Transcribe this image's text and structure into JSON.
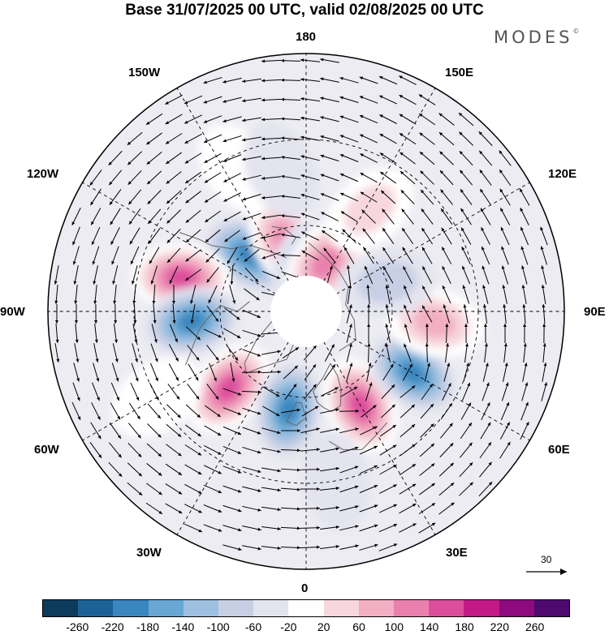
{
  "title": "Base 31/07/2025 00 UTC, valid 02/08/2025 00 UTC",
  "brand": "MODES",
  "brand_mark": "©",
  "map_labels": {
    "top": "180",
    "bottom": "0",
    "left": "90W",
    "right": "90E",
    "lon150w": "150W",
    "lon150e": "150E",
    "lon120w": "120W",
    "lon120e": "120E",
    "lon60w": "60W",
    "lon60e": "60E",
    "lon30w": "30W",
    "lon30e": "30E"
  },
  "vector_scale_label": "30",
  "colorbar": {
    "colors": [
      "#0d3b5c",
      "#1d6296",
      "#3a86be",
      "#68a7d4",
      "#9dc0e0",
      "#c6cfe4",
      "#e4e4ef",
      "#ffffff",
      "#f7d7dd",
      "#f2afc3",
      "#ea80ae",
      "#dc4d9c",
      "#c21a87",
      "#8d0a7f",
      "#4e0a6e"
    ],
    "ticks": [
      "-260",
      "-220",
      "-180",
      "-140",
      "-100",
      "-60",
      "-20",
      "20",
      "60",
      "100",
      "140",
      "180",
      "220",
      "260"
    ]
  },
  "anomalies": [
    {
      "lat": 62,
      "lon": -135,
      "value": -210
    },
    {
      "lat": 65,
      "lon": -165,
      "value": 150
    },
    {
      "lat": 74,
      "lon": 178,
      "value": -120
    },
    {
      "lat": 72,
      "lon": 158,
      "value": 140
    },
    {
      "lat": 45,
      "lon": -105,
      "value": 190
    },
    {
      "lat": 50,
      "lon": -85,
      "value": -200
    },
    {
      "lat": 52,
      "lon": -45,
      "value": 200
    },
    {
      "lat": 55,
      "lon": -10,
      "value": -200
    },
    {
      "lat": 52,
      "lon": 30,
      "value": 180
    },
    {
      "lat": 47,
      "lon": 60,
      "value": -200
    },
    {
      "lat": 45,
      "lon": 85,
      "value": 110
    },
    {
      "lat": 48,
      "lon": 148,
      "value": 60
    },
    {
      "lat": 35,
      "lon": -155,
      "value": 40
    },
    {
      "lat": 40,
      "lon": -170,
      "value": -40
    },
    {
      "lat": 60,
      "lon": 110,
      "value": -60
    },
    {
      "lat": 30,
      "lon": -60,
      "value": 50
    },
    {
      "lat": 30,
      "lon": 10,
      "value": -30
    }
  ]
}
